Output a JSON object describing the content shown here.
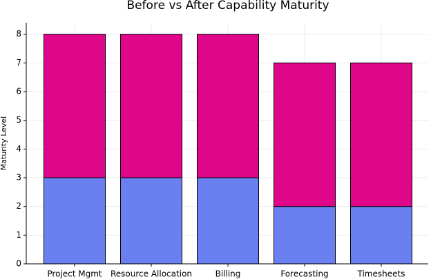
{
  "chart_data": {
    "type": "stacked_bar",
    "title": "Before vs After Capability Maturity",
    "ylabel": "Maturity Level",
    "categories": [
      "Project Mgmt",
      "Resource Allocation",
      "Billing",
      "Forecasting",
      "Timesheets"
    ],
    "series": [
      {
        "color": "#6a7ff0",
        "values": [
          3,
          3,
          3,
          2,
          2
        ]
      },
      {
        "color": "#e0068a",
        "values": [
          5,
          5,
          5,
          5,
          5
        ]
      }
    ],
    "ylim": [
      0,
      8.4
    ],
    "yticks": [
      0,
      1,
      2,
      3,
      4,
      5,
      6,
      7,
      8
    ],
    "grid": true
  }
}
